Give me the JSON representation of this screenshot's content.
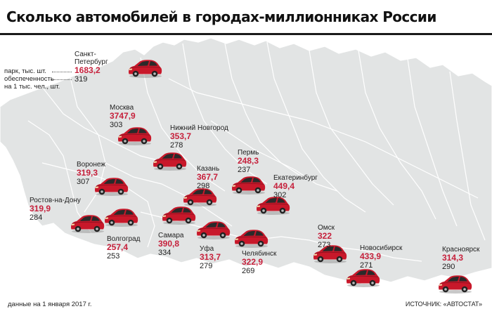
{
  "title": "Сколько автомобилей в городах-миллионниках России",
  "legend": {
    "park": "парк, тыс. шт.",
    "provision_line1": "обеспеченность",
    "provision_line2": "на 1 тыс. чел., шт."
  },
  "cities": [
    {
      "name": "Санкт-",
      "name2": "Петербург",
      "park": "1683,2",
      "rate": "319"
    },
    {
      "name": "Москва",
      "park": "3747,9",
      "rate": "303"
    },
    {
      "name": "Нижний Новгород",
      "park": "353,7",
      "rate": "278"
    },
    {
      "name": "Воронеж",
      "park": "319,3",
      "rate": "307"
    },
    {
      "name": "Пермь",
      "park": "248,3",
      "rate": "237"
    },
    {
      "name": "Казань",
      "park": "367,7",
      "rate": "298"
    },
    {
      "name": "Екатеринбург",
      "park": "449,4",
      "rate": "302"
    },
    {
      "name": "Ростов-на-Дону",
      "park": "319,9",
      "rate": "284"
    },
    {
      "name": "Волгоград",
      "park": "257,4",
      "rate": "253"
    },
    {
      "name": "Самара",
      "park": "390,8",
      "rate": "334"
    },
    {
      "name": "Уфа",
      "park": "313,7",
      "rate": "279"
    },
    {
      "name": "Челябинск",
      "park": "322,9",
      "rate": "269"
    },
    {
      "name": "Омск",
      "park": "322",
      "rate": "273"
    },
    {
      "name": "Новосибирск",
      "park": "433,9",
      "rate": "271"
    },
    {
      "name": "Красноярск",
      "park": "314,3",
      "rate": "290"
    }
  ],
  "footnote": "данные на 1 января 2017 г.",
  "source": "ИСТОЧНИК: «АВТОСТАТ»",
  "colors": {
    "car": "#c8182a",
    "value": "#c6213c",
    "land": "#e2e4e4",
    "sea": "#ffffff",
    "border": "#ffffff"
  },
  "icon": "car-icon"
}
